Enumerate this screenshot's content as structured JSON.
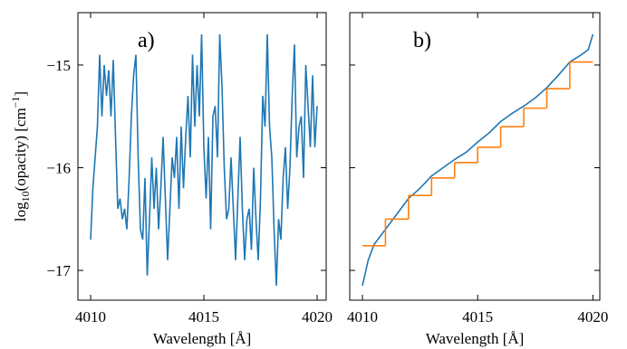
{
  "chart_data": [
    {
      "type": "line",
      "panel_label": "a)",
      "ylabel": {
        "base": "log",
        "sub": "10",
        "mid": "(opacity) [cm",
        "sup": "−1",
        "end": "]"
      },
      "xlabel": "Wavelength [Å]",
      "xlim": [
        4009.44,
        4020.4
      ],
      "xticks": [
        4010,
        4015,
        4020
      ],
      "ylim": [
        -17.29,
        -14.49
      ],
      "yticks": [
        {
          "value": -15,
          "label": "−15"
        },
        {
          "value": -16,
          "label": "−16"
        },
        {
          "value": -17,
          "label": "−17"
        }
      ],
      "x": [
        4010.0,
        4010.1,
        4010.2,
        4010.3,
        4010.4,
        4010.5,
        4010.6,
        4010.7,
        4010.8,
        4010.9,
        4011.0,
        4011.1,
        4011.2,
        4011.3,
        4011.4,
        4011.5,
        4011.6,
        4011.7,
        4011.8,
        4011.9,
        4012.0,
        4012.1,
        4012.2,
        4012.3,
        4012.4,
        4012.5,
        4012.6,
        4012.7,
        4012.8,
        4012.9,
        4013.0,
        4013.1,
        4013.2,
        4013.3,
        4013.4,
        4013.5,
        4013.6,
        4013.7,
        4013.8,
        4013.9,
        4014.0,
        4014.1,
        4014.2,
        4014.3,
        4014.4,
        4014.5,
        4014.6,
        4014.7,
        4014.8,
        4014.9,
        4015.0,
        4015.1,
        4015.2,
        4015.3,
        4015.4,
        4015.5,
        4015.6,
        4015.7,
        4015.8,
        4015.9,
        4016.0,
        4016.1,
        4016.2,
        4016.3,
        4016.4,
        4016.5,
        4016.6,
        4016.7,
        4016.8,
        4016.9,
        4017.0,
        4017.1,
        4017.2,
        4017.3,
        4017.4,
        4017.5,
        4017.6,
        4017.7,
        4017.8,
        4017.9,
        4018.0,
        4018.1,
        4018.2,
        4018.3,
        4018.4,
        4018.5,
        4018.6,
        4018.7,
        4018.8,
        4018.9,
        4019.0,
        4019.1,
        4019.2,
        4019.3,
        4019.4,
        4019.5,
        4019.6,
        4019.7,
        4019.8,
        4019.9,
        4020.0
      ],
      "series": [
        {
          "color": "#1f77b4",
          "values": [
            -16.7,
            -16.2,
            -15.9,
            -15.6,
            -14.9,
            -15.5,
            -15.0,
            -15.3,
            -15.05,
            -15.5,
            -14.95,
            -15.7,
            -16.4,
            -16.3,
            -16.5,
            -16.4,
            -16.6,
            -16.1,
            -15.5,
            -15.1,
            -14.9,
            -15.9,
            -16.6,
            -16.7,
            -16.1,
            -17.05,
            -16.5,
            -15.9,
            -16.4,
            -16.0,
            -16.6,
            -16.2,
            -15.7,
            -16.3,
            -16.9,
            -16.4,
            -15.9,
            -16.1,
            -15.7,
            -16.4,
            -15.6,
            -16.2,
            -15.7,
            -15.3,
            -15.9,
            -14.9,
            -15.6,
            -15.0,
            -15.5,
            -14.7,
            -15.8,
            -16.3,
            -15.7,
            -16.6,
            -15.5,
            -15.4,
            -15.9,
            -14.7,
            -15.2,
            -16.0,
            -16.5,
            -16.4,
            -15.9,
            -16.4,
            -16.9,
            -16.3,
            -15.7,
            -16.4,
            -16.9,
            -16.5,
            -16.4,
            -16.8,
            -16.0,
            -16.5,
            -16.9,
            -16.3,
            -15.3,
            -15.6,
            -14.7,
            -15.6,
            -15.9,
            -16.6,
            -17.15,
            -16.5,
            -16.7,
            -16.1,
            -15.8,
            -16.4,
            -16.0,
            -15.3,
            -14.8,
            -15.9,
            -15.6,
            -15.5,
            -16.1,
            -15.0,
            -15.4,
            -15.8,
            -15.1,
            -15.8,
            -15.4
          ]
        }
      ]
    },
    {
      "type": "line",
      "panel_label": "b)",
      "xlabel": "Wavelength [Å]",
      "xlim": [
        4009.45,
        4020.3
      ],
      "xticks": [
        4010,
        4015,
        4020
      ],
      "ylim": [
        -17.29,
        -14.49
      ],
      "yticks": [
        -15,
        -16,
        -17
      ],
      "series": [
        {
          "color": "#1f77b4",
          "x": [
            4010,
            4010.25,
            4010.5,
            4011,
            4011.5,
            4012,
            4012.5,
            4013,
            4013.5,
            4014,
            4014.5,
            4015,
            4015.5,
            4016,
            4016.5,
            4017,
            4017.5,
            4018,
            4018.5,
            4019,
            4019.5,
            4019.8,
            4020
          ],
          "values": [
            -17.15,
            -16.9,
            -16.75,
            -16.6,
            -16.45,
            -16.3,
            -16.2,
            -16.08,
            -16.0,
            -15.92,
            -15.85,
            -15.75,
            -15.66,
            -15.55,
            -15.47,
            -15.4,
            -15.32,
            -15.22,
            -15.1,
            -14.97,
            -14.9,
            -14.85,
            -14.7
          ]
        },
        {
          "color": "#ff7f0e",
          "bins": [
            4010,
            4011,
            4012,
            4013,
            4014,
            4015,
            4016,
            4017,
            4018,
            4019,
            4020
          ],
          "values": [
            -16.76,
            -16.5,
            -16.27,
            -16.1,
            -15.95,
            -15.8,
            -15.6,
            -15.42,
            -15.23,
            -14.97
          ]
        }
      ]
    }
  ]
}
